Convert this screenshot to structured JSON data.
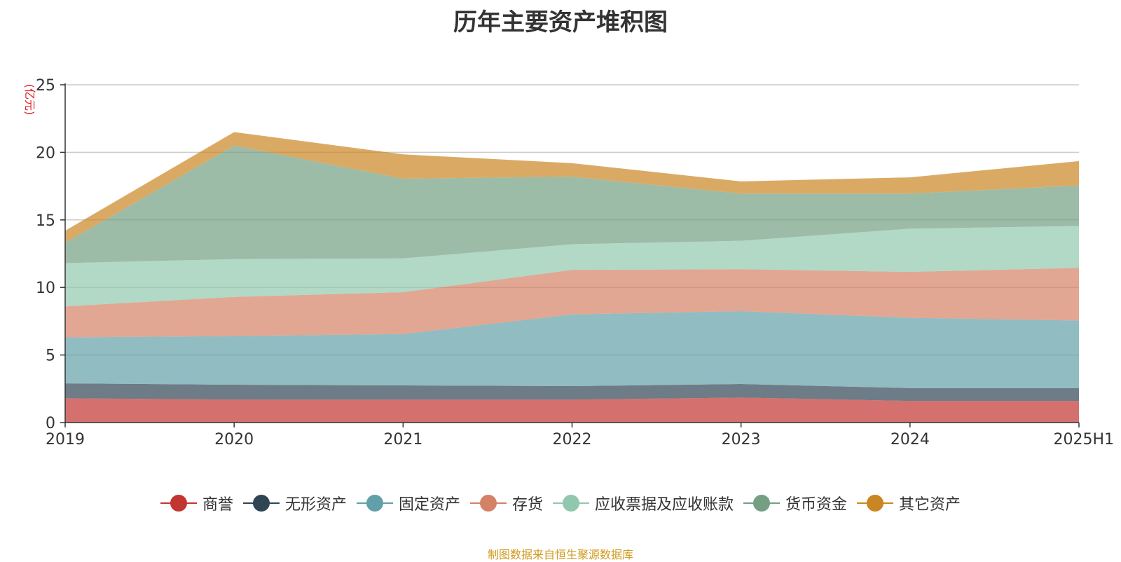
{
  "chart_data": {
    "type": "area",
    "stacked": true,
    "title": "历年主要资产堆积图",
    "ylabel": "(亿元)",
    "ylabel_color": "#e02020",
    "x": [
      "2019",
      "2020",
      "2021",
      "2022",
      "2023",
      "2024",
      "2025H1"
    ],
    "yticks": [
      "0",
      "5",
      "10",
      "15",
      "20",
      "25"
    ],
    "ylim": [
      0,
      25
    ],
    "grid": true,
    "legend_position": "bottom",
    "series": [
      {
        "name": "商誉",
        "color": "#c23531",
        "values": [
          1.8,
          1.7,
          1.7,
          1.7,
          1.85,
          1.6,
          1.6
        ]
      },
      {
        "name": "无形资产",
        "color": "#2f4554",
        "values": [
          1.1,
          1.1,
          1.05,
          1.0,
          1.0,
          0.95,
          0.95
        ]
      },
      {
        "name": "固定资产",
        "color": "#61a0a8",
        "values": [
          3.4,
          3.6,
          3.8,
          5.3,
          5.4,
          5.2,
          5.0
        ]
      },
      {
        "name": "存货",
        "color": "#d48265",
        "values": [
          2.3,
          2.9,
          3.1,
          3.3,
          3.1,
          3.4,
          3.9
        ]
      },
      {
        "name": "应收票据及应收账款",
        "color": "#91c7ae",
        "values": [
          3.2,
          2.8,
          2.5,
          1.9,
          2.1,
          3.2,
          3.1
        ]
      },
      {
        "name": "货币资金",
        "color": "#749f83",
        "values": [
          1.5,
          8.4,
          5.9,
          5.0,
          3.5,
          2.6,
          3.0
        ]
      },
      {
        "name": "其它资产",
        "color": "#ca8622",
        "values": [
          0.9,
          1.0,
          1.8,
          1.0,
          0.9,
          1.2,
          1.8
        ]
      }
    ]
  },
  "footnote": "制图数据来自恒生聚源数据库"
}
